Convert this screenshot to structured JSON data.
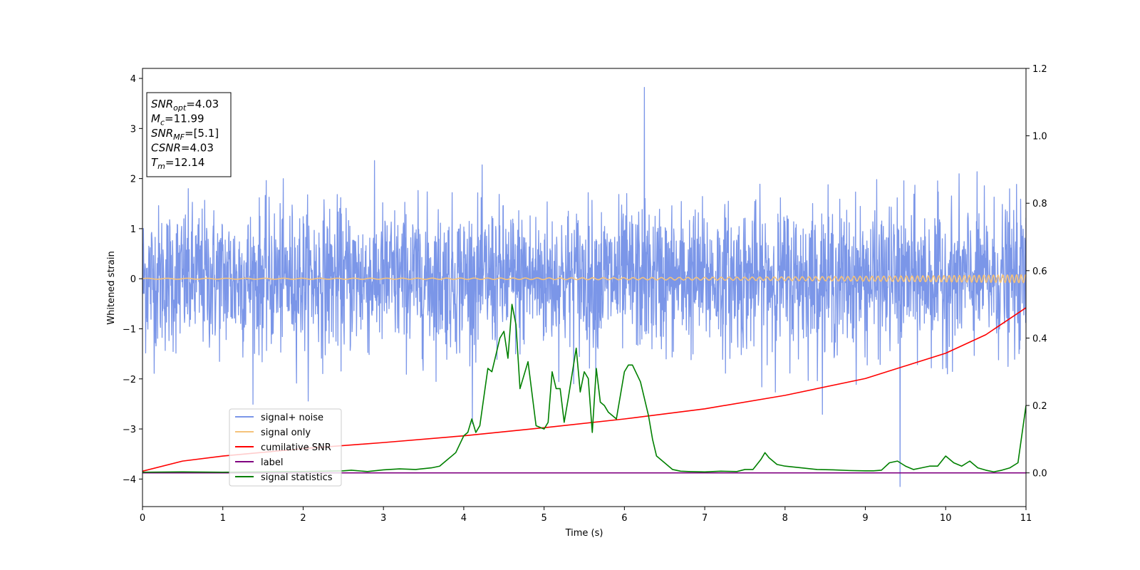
{
  "chart_data": {
    "type": "line",
    "xlabel": "Time (s)",
    "ylabel": "Whitened strain",
    "xlim": [
      0,
      11
    ],
    "ylim": [
      -4.55,
      4.2
    ],
    "y2lim": [
      -0.1,
      1.2
    ],
    "x_ticks": [
      "0",
      "1",
      "2",
      "3",
      "4",
      "5",
      "6",
      "7",
      "8",
      "9",
      "10",
      "11"
    ],
    "y_ticks": [
      "4",
      "3",
      "2",
      "1",
      "0",
      "−1",
      "−2",
      "−3",
      "−4"
    ],
    "y2_ticks": [
      "1.2",
      "1.0",
      "0.8",
      "0.6",
      "0.4",
      "0.2",
      "0.0"
    ],
    "grid": false,
    "legend_position": "lower-left",
    "info_box": [
      {
        "var": "SNR",
        "sub": "opt",
        "value": "=4.03"
      },
      {
        "var": "M",
        "sub": "c",
        "value": "=11.99"
      },
      {
        "var": "SNR",
        "sub": "MF",
        "value": "=[5.1]"
      },
      {
        "var": "CSNR",
        "sub": "",
        "value": "=4.03"
      },
      {
        "var": "T",
        "sub": "m",
        "value": "=12.14"
      }
    ],
    "series": [
      {
        "name": "signal+ noise",
        "color": "#7b96e8",
        "axis": "left",
        "kind": "noise",
        "envelope_typical": [
          -2.1,
          2.3
        ],
        "extremes": [
          -4.15,
          3.82
        ]
      },
      {
        "name": "signal only",
        "color": "#f5c27a",
        "axis": "left",
        "kind": "chirp",
        "amplitude_start": 0.01,
        "amplitude_end": 0.08
      },
      {
        "name": "cumilative SNR",
        "color": "#ff0000",
        "axis": "right",
        "x": [
          0,
          0.5,
          1,
          2,
          3,
          4,
          5,
          6,
          7,
          8,
          9,
          10,
          10.5,
          11
        ],
        "values": [
          0.005,
          0.035,
          0.05,
          0.072,
          0.09,
          0.11,
          0.134,
          0.16,
          0.19,
          0.23,
          0.28,
          0.355,
          0.41,
          0.49
        ]
      },
      {
        "name": "label",
        "color": "#800080",
        "axis": "right",
        "x": [
          0,
          11
        ],
        "values": [
          0.0,
          0.0
        ]
      },
      {
        "name": "signal statistics",
        "color": "#008000",
        "axis": "right",
        "x": [
          0,
          0.5,
          1,
          1.5,
          2,
          2.5,
          2.6,
          2.8,
          3,
          3.2,
          3.4,
          3.6,
          3.7,
          3.8,
          3.9,
          4,
          4.05,
          4.1,
          4.15,
          4.2,
          4.3,
          4.35,
          4.45,
          4.5,
          4.55,
          4.6,
          4.65,
          4.7,
          4.8,
          4.9,
          5,
          5.05,
          5.1,
          5.15,
          5.2,
          5.25,
          5.3,
          5.4,
          5.45,
          5.5,
          5.55,
          5.6,
          5.65,
          5.7,
          5.75,
          5.8,
          5.9,
          6,
          6.05,
          6.1,
          6.2,
          6.3,
          6.35,
          6.4,
          6.5,
          6.6,
          6.7,
          6.8,
          7,
          7.2,
          7.4,
          7.5,
          7.6,
          7.7,
          7.75,
          7.8,
          7.9,
          8,
          8.2,
          8.4,
          8.6,
          8.8,
          9,
          9.1,
          9.2,
          9.3,
          9.4,
          9.5,
          9.6,
          9.7,
          9.8,
          9.9,
          10,
          10.1,
          10.2,
          10.3,
          10.4,
          10.5,
          10.6,
          10.7,
          10.8,
          10.9,
          11
        ],
        "values": [
          0.002,
          0.003,
          0.002,
          0.003,
          0.004,
          0.006,
          0.008,
          0.004,
          0.009,
          0.012,
          0.01,
          0.015,
          0.02,
          0.04,
          0.06,
          0.11,
          0.12,
          0.16,
          0.12,
          0.14,
          0.31,
          0.3,
          0.4,
          0.42,
          0.34,
          0.5,
          0.44,
          0.25,
          0.33,
          0.14,
          0.13,
          0.15,
          0.3,
          0.25,
          0.25,
          0.15,
          0.22,
          0.37,
          0.24,
          0.3,
          0.28,
          0.12,
          0.31,
          0.21,
          0.2,
          0.18,
          0.16,
          0.3,
          0.32,
          0.32,
          0.27,
          0.17,
          0.1,
          0.05,
          0.03,
          0.01,
          0.005,
          0.004,
          0.003,
          0.005,
          0.004,
          0.01,
          0.01,
          0.04,
          0.06,
          0.045,
          0.025,
          0.02,
          0.015,
          0.01,
          0.009,
          0.007,
          0.006,
          0.006,
          0.008,
          0.03,
          0.035,
          0.02,
          0.01,
          0.015,
          0.02,
          0.02,
          0.05,
          0.03,
          0.02,
          0.035,
          0.015,
          0.008,
          0.003,
          0.008,
          0.015,
          0.03,
          0.2
        ]
      }
    ]
  }
}
